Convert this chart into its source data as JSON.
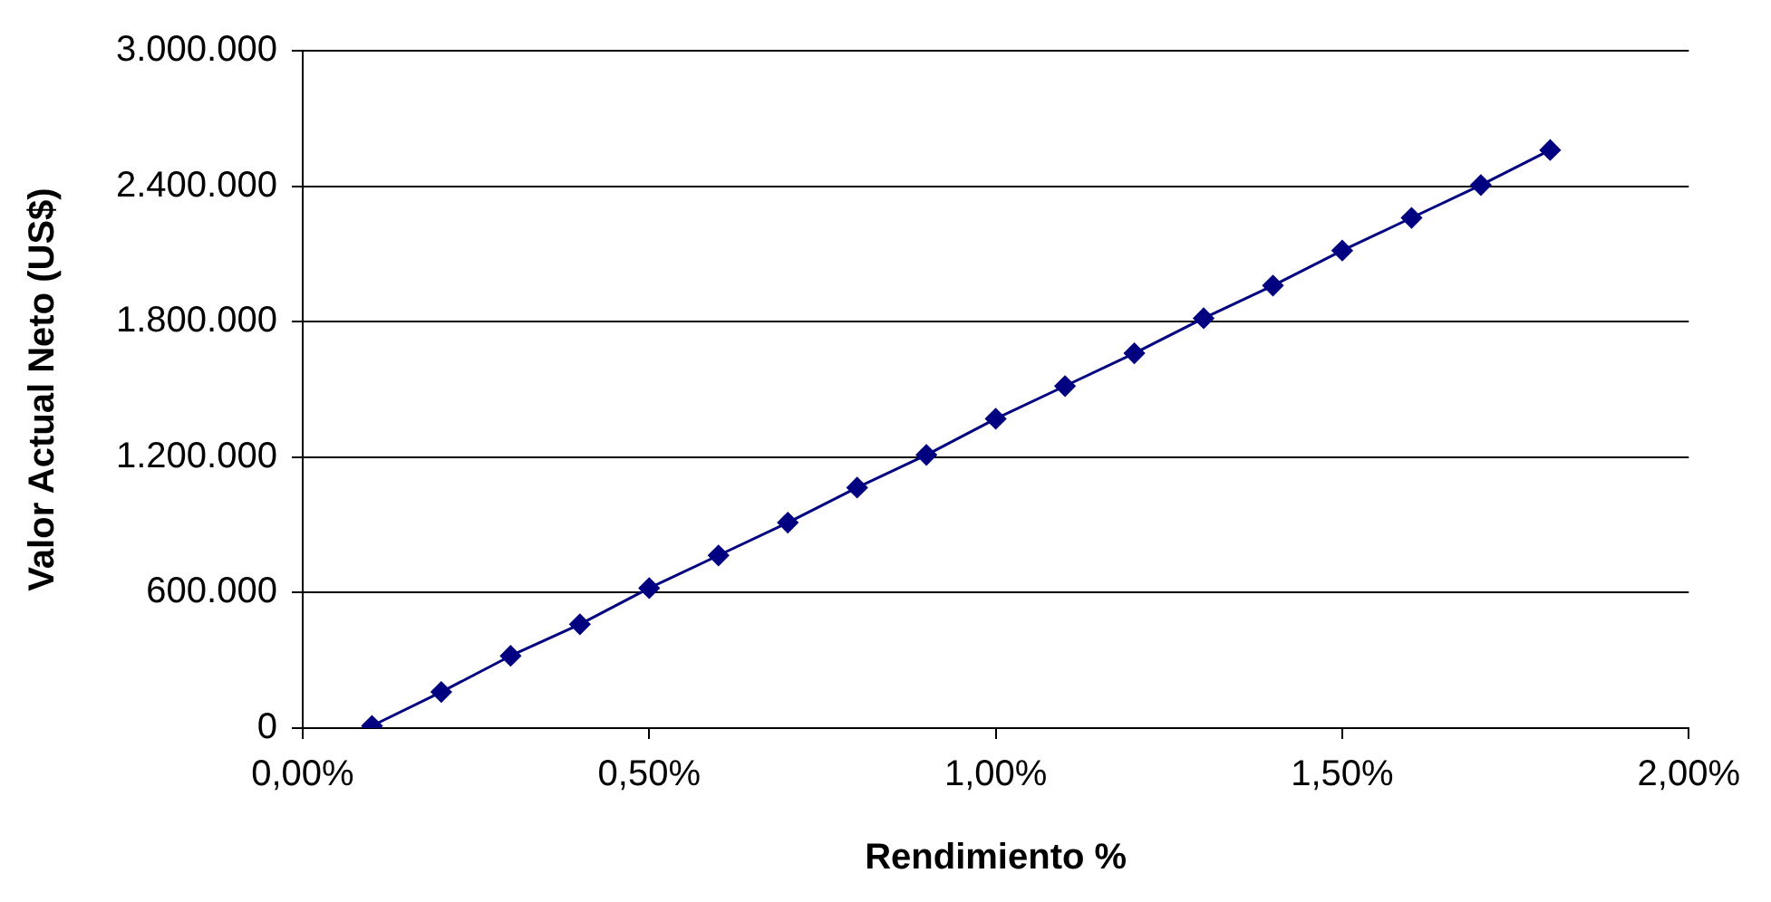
{
  "chart_data": {
    "type": "line",
    "xlabel": "Rendimiento %",
    "ylabel": "Valor Actual Neto (US$)",
    "x": [
      0.1,
      0.2,
      0.3,
      0.4,
      0.5,
      0.6,
      0.7,
      0.8,
      0.9,
      1.0,
      1.1,
      1.2,
      1.3,
      1.4,
      1.5,
      1.6,
      1.7,
      1.8
    ],
    "series": [
      {
        "color": "#000080",
        "values": [
          10000,
          160000,
          320000,
          460000,
          620000,
          765000,
          910000,
          1065000,
          1210000,
          1370000,
          1515000,
          1660000,
          1815000,
          1960000,
          2115000,
          2260000,
          2405000,
          2560000
        ]
      }
    ],
    "xlim": [
      0,
      2
    ],
    "xticks": [
      {
        "value": 0,
        "label": "0,00%"
      },
      {
        "value": 0.5,
        "label": "0,50%"
      },
      {
        "value": 1,
        "label": "1,00%"
      },
      {
        "value": 1.5,
        "label": "1,50%"
      },
      {
        "value": 2,
        "label": "2,00%"
      }
    ],
    "ylim": [
      0,
      3000000
    ],
    "yticks": [
      {
        "value": 0,
        "label": "0"
      },
      {
        "value": 600000,
        "label": "600.000"
      },
      {
        "value": 1200000,
        "label": "1.200.000"
      },
      {
        "value": 1800000,
        "label": "1.800.000"
      },
      {
        "value": 2400000,
        "label": "2.400.000"
      },
      {
        "value": 3000000,
        "label": "3.000.000"
      }
    ],
    "grid": "y",
    "marker": "diamond",
    "line_style": "solid"
  }
}
